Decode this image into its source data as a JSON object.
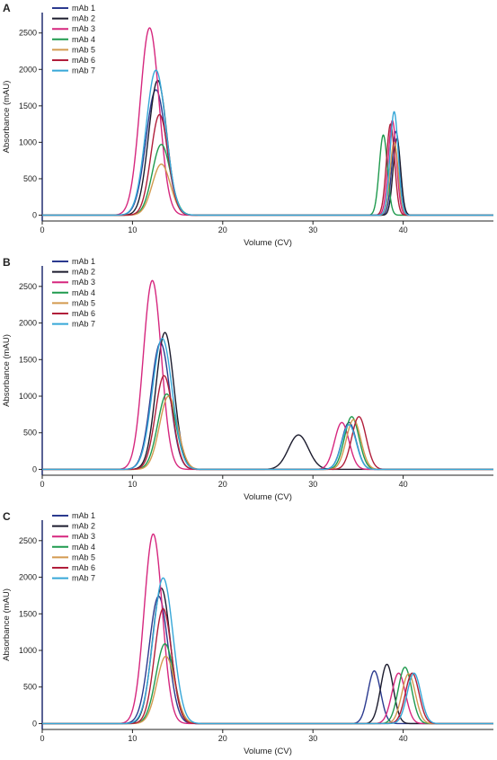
{
  "chart_data": [
    {
      "type": "line",
      "panel_label": "A",
      "xlabel": "Volume (CV)",
      "ylabel": "Absorbance (mAU)",
      "xlim": [
        0,
        50
      ],
      "ylim": [
        -80,
        2780
      ],
      "x_ticks": [
        0,
        10,
        20,
        30,
        40
      ],
      "y_ticks": [
        0,
        500,
        1000,
        1500,
        2000,
        2500
      ],
      "grid": false,
      "legend": "top-left",
      "series": [
        {
          "name": "mAb 1",
          "color": "#2b3a8f",
          "peaks": [
            {
              "x": 12.6,
              "height": 1720,
              "width": 1.1
            },
            {
              "x": 39.2,
              "height": 1150,
              "width": 0.45
            }
          ]
        },
        {
          "name": "mAb 2",
          "color": "#1c1c2e",
          "peaks": [
            {
              "x": 12.8,
              "height": 1850,
              "width": 1.0
            },
            {
              "x": 39.3,
              "height": 1050,
              "width": 0.42
            }
          ]
        },
        {
          "name": "mAb 3",
          "color": "#d6277e",
          "peaks": [
            {
              "x": 11.9,
              "height": 2570,
              "width": 1.05
            },
            {
              "x": 38.8,
              "height": 1300,
              "width": 0.45
            }
          ]
        },
        {
          "name": "mAb 4",
          "color": "#1f9a4e",
          "peaks": [
            {
              "x": 13.2,
              "height": 970,
              "width": 1.0
            },
            {
              "x": 37.8,
              "height": 1100,
              "width": 0.45
            }
          ]
        },
        {
          "name": "mAb 5",
          "color": "#d39a4f",
          "peaks": [
            {
              "x": 13.2,
              "height": 700,
              "width": 1.0
            },
            {
              "x": 39.0,
              "height": 1000,
              "width": 0.45
            }
          ]
        },
        {
          "name": "mAb 6",
          "color": "#b11e3a",
          "peaks": [
            {
              "x": 13.0,
              "height": 1380,
              "width": 0.95
            },
            {
              "x": 38.6,
              "height": 1250,
              "width": 0.45
            }
          ]
        },
        {
          "name": "mAb 7",
          "color": "#36a7d8",
          "peaks": [
            {
              "x": 12.6,
              "height": 1990,
              "width": 1.1
            },
            {
              "x": 39.0,
              "height": 1420,
              "width": 0.45
            }
          ]
        }
      ]
    },
    {
      "type": "line",
      "panel_label": "B",
      "xlabel": "Volume (CV)",
      "ylabel": "Absorbance (mAU)",
      "xlim": [
        0,
        50
      ],
      "ylim": [
        -80,
        2780
      ],
      "x_ticks": [
        0,
        10,
        20,
        30,
        40
      ],
      "y_ticks": [
        0,
        500,
        1000,
        1500,
        2000,
        2500
      ],
      "grid": false,
      "legend": "top-left",
      "series": [
        {
          "name": "mAb 1",
          "color": "#2b3a8f",
          "peaks": [
            {
              "x": 13.1,
              "height": 1730,
              "width": 1.05
            },
            {
              "x": 34.0,
              "height": 640,
              "width": 0.8
            }
          ]
        },
        {
          "name": "mAb 2",
          "color": "#1c1c2e",
          "peaks": [
            {
              "x": 13.6,
              "height": 1870,
              "width": 1.0
            },
            {
              "x": 28.4,
              "height": 470,
              "width": 1.1
            }
          ]
        },
        {
          "name": "mAb 3",
          "color": "#d6277e",
          "peaks": [
            {
              "x": 12.2,
              "height": 2580,
              "width": 1.0
            },
            {
              "x": 33.2,
              "height": 640,
              "width": 0.8
            }
          ]
        },
        {
          "name": "mAb 4",
          "color": "#1f9a4e",
          "peaks": [
            {
              "x": 13.8,
              "height": 1030,
              "width": 1.0
            },
            {
              "x": 34.3,
              "height": 720,
              "width": 0.8
            }
          ]
        },
        {
          "name": "mAb 5",
          "color": "#d39a4f",
          "peaks": [
            {
              "x": 14.0,
              "height": 1000,
              "width": 1.0
            },
            {
              "x": 34.5,
              "height": 680,
              "width": 0.8
            }
          ]
        },
        {
          "name": "mAb 6",
          "color": "#b11e3a",
          "peaks": [
            {
              "x": 13.5,
              "height": 1280,
              "width": 0.95
            },
            {
              "x": 35.1,
              "height": 720,
              "width": 0.8
            }
          ]
        },
        {
          "name": "mAb 7",
          "color": "#36a7d8",
          "peaks": [
            {
              "x": 13.3,
              "height": 1790,
              "width": 1.1
            },
            {
              "x": 34.0,
              "height": 610,
              "width": 0.8
            }
          ]
        }
      ]
    },
    {
      "type": "line",
      "panel_label": "C",
      "xlabel": "Volume (CV)",
      "ylabel": "Absorbance (mAU)",
      "xlim": [
        0,
        50
      ],
      "ylim": [
        -80,
        2780
      ],
      "x_ticks": [
        0,
        10,
        20,
        30,
        40
      ],
      "y_ticks": [
        0,
        500,
        1000,
        1500,
        2000,
        2500
      ],
      "grid": false,
      "legend": "top-left",
      "series": [
        {
          "name": "mAb 1",
          "color": "#2b3a8f",
          "peaks": [
            {
              "x": 12.9,
              "height": 1740,
              "width": 1.05
            },
            {
              "x": 36.8,
              "height": 720,
              "width": 0.7
            }
          ]
        },
        {
          "name": "mAb 2",
          "color": "#1c1c2e",
          "peaks": [
            {
              "x": 13.2,
              "height": 1850,
              "width": 1.0
            },
            {
              "x": 38.2,
              "height": 810,
              "width": 0.7
            }
          ]
        },
        {
          "name": "mAb 3",
          "color": "#d6277e",
          "peaks": [
            {
              "x": 12.3,
              "height": 2590,
              "width": 1.0
            },
            {
              "x": 39.5,
              "height": 690,
              "width": 0.75
            }
          ]
        },
        {
          "name": "mAb 4",
          "color": "#1f9a4e",
          "peaks": [
            {
              "x": 13.6,
              "height": 1090,
              "width": 1.0
            },
            {
              "x": 40.2,
              "height": 770,
              "width": 0.75
            }
          ]
        },
        {
          "name": "mAb 5",
          "color": "#d39a4f",
          "peaks": [
            {
              "x": 13.7,
              "height": 920,
              "width": 1.0
            },
            {
              "x": 40.6,
              "height": 680,
              "width": 0.75
            }
          ]
        },
        {
          "name": "mAb 6",
          "color": "#b11e3a",
          "peaks": [
            {
              "x": 13.4,
              "height": 1570,
              "width": 0.95
            },
            {
              "x": 41.0,
              "height": 690,
              "width": 0.75
            }
          ]
        },
        {
          "name": "mAb 7",
          "color": "#36a7d8",
          "peaks": [
            {
              "x": 13.4,
              "height": 1990,
              "width": 1.1
            },
            {
              "x": 41.2,
              "height": 690,
              "width": 0.75
            }
          ]
        }
      ]
    }
  ]
}
